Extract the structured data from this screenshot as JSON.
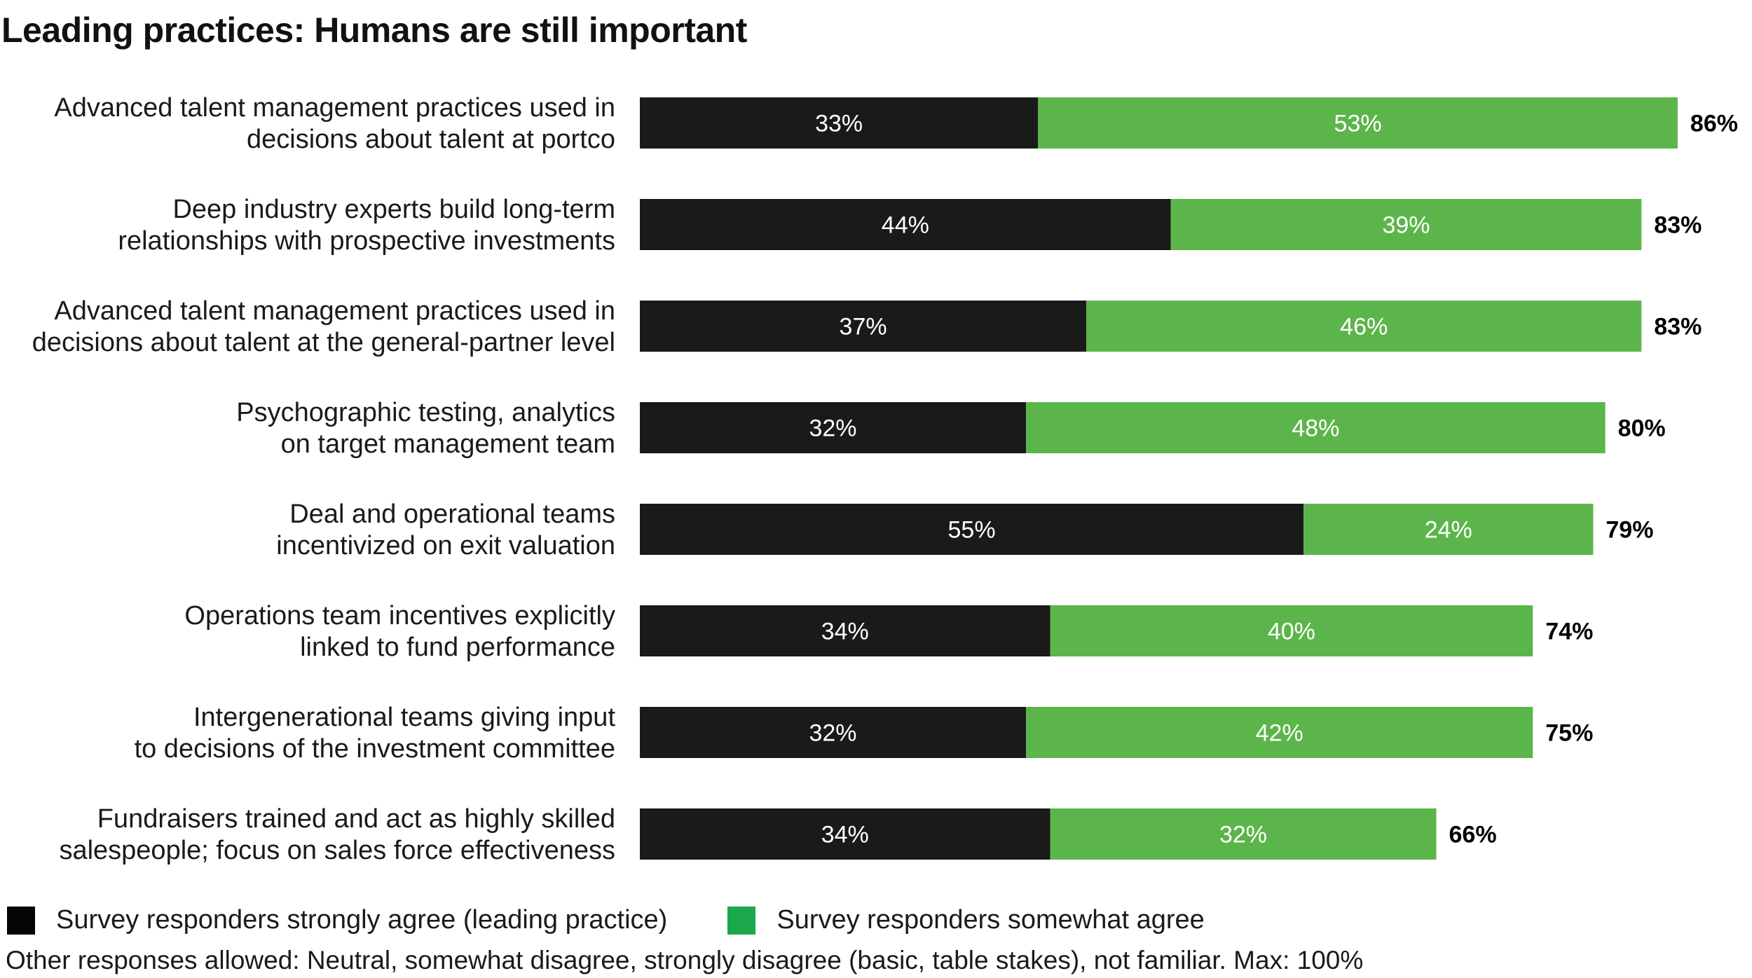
{
  "chart_data": {
    "type": "bar",
    "orientation": "horizontal",
    "stacked": true,
    "title": "Leading practices: Humans are still important",
    "xlabel": "",
    "ylabel": "",
    "xlim": [
      0,
      100
    ],
    "grid": false,
    "legend_position": "bottom-left",
    "categories": [
      [
        "Advanced talent management practices used in",
        "decisions about talent at portco"
      ],
      [
        "Deep industry experts build long-term",
        "relationships with prospective investments"
      ],
      [
        "Advanced talent management practices used in",
        "decisions about talent at the general-partner level"
      ],
      [
        "Psychographic testing, analytics",
        "on target management team"
      ],
      [
        "Deal and operational teams",
        "incentivized on exit valuation"
      ],
      [
        "Operations team incentives explicitly",
        "linked to fund performance"
      ],
      [
        "Intergenerational teams giving input",
        "to decisions of the investment committee"
      ],
      [
        "Fundraisers trained and act as highly skilled",
        "salespeople; focus on sales force effectiveness"
      ]
    ],
    "series": [
      {
        "name": "Survey responders strongly agree (leading practice)",
        "color": "#1a1a1a",
        "values": [
          33,
          44,
          37,
          32,
          55,
          34,
          32,
          34
        ],
        "labels": [
          "33%",
          "44%",
          "37%",
          "32%",
          "55%",
          "34%",
          "32%",
          "34%"
        ]
      },
      {
        "name": "Survey responders somewhat agree",
        "color": "#5cb54a",
        "values": [
          53,
          39,
          46,
          48,
          24,
          40,
          42,
          32
        ],
        "labels": [
          "53%",
          "39%",
          "46%",
          "48%",
          "24%",
          "40%",
          "42%",
          "32%"
        ]
      }
    ],
    "totals": [
      86,
      83,
      83,
      80,
      79,
      74,
      75,
      66
    ],
    "total_labels": [
      "86%",
      "83%",
      "83%",
      "80%",
      "79%",
      "74%",
      "75%",
      "66%"
    ]
  },
  "legend": {
    "items": [
      {
        "label": "Survey responders strongly agree (leading practice)",
        "color": "#050505"
      },
      {
        "label": "Survey responders somewhat agree",
        "color": "#1aa84b"
      }
    ]
  },
  "note": "Other responses allowed: Neutral, somewhat disagree, strongly disagree (basic, table stakes), not familiar. Max: 100%"
}
